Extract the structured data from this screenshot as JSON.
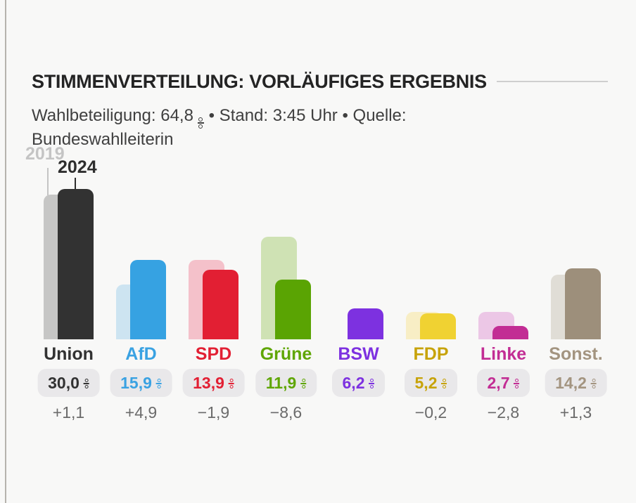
{
  "page": {
    "background_color": "#f8f8f7",
    "left_rule_color": "#b6b3ad",
    "badge_background_color": "#e9e8ea",
    "change_text_color": "#6b6b6b"
  },
  "header": {
    "title": "STIMMENVERTEILUNG: VORLÄUFIGES ERGEBNIS",
    "subtitle_part1": "Wahlbeteiligung: 64,8",
    "subtitle_part2": "• Stand: 3:45 Uhr • Quelle: Bundeswahlleiterin",
    "unit": "%"
  },
  "legend": {
    "series_2019_label": "2019",
    "series_2024_label": "2024",
    "series_2019_color": "#c4c4c4",
    "series_2024_color": "#2e2e2e"
  },
  "chart_data": {
    "type": "bar",
    "title": "STIMMENVERTEILUNG: VORLÄUFIGES ERGEBNIS",
    "unit": "%",
    "grid": false,
    "legend_position": "top-left",
    "ylim": [
      0,
      30
    ],
    "categories": [
      "Union",
      "AfD",
      "SPD",
      "Grüne",
      "BSW",
      "FDP",
      "Linke",
      "Sonst."
    ],
    "series": [
      {
        "name": "2019",
        "values": [
          28.9,
          11.0,
          15.8,
          20.5,
          null,
          5.4,
          5.5,
          12.9
        ]
      },
      {
        "name": "2024",
        "values": [
          30.0,
          15.9,
          13.9,
          11.9,
          6.2,
          5.2,
          2.7,
          14.2
        ]
      }
    ],
    "parties": [
      {
        "name": "Union",
        "value_2024": 30.0,
        "value_2019": 28.9,
        "value_label": "30,0",
        "change_label": "+1,1",
        "color_2024": "#323232",
        "color_2019": "#c6c6c5",
        "label_color": "#323232"
      },
      {
        "name": "AfD",
        "value_2024": 15.9,
        "value_2019": 11.0,
        "value_label": "15,9",
        "change_label": "+4,9",
        "color_2024": "#36a2e2",
        "color_2019": "#cde4f1",
        "label_color": "#3aa2e2"
      },
      {
        "name": "SPD",
        "value_2024": 13.9,
        "value_2019": 15.8,
        "value_label": "13,9",
        "change_label": "−1,9",
        "color_2024": "#e21f33",
        "color_2019": "#f4c1ca",
        "label_color": "#e21f33"
      },
      {
        "name": "Grüne",
        "value_2024": 11.9,
        "value_2019": 20.5,
        "value_label": "11,9",
        "change_label": "−8,6",
        "color_2024": "#5aa403",
        "color_2019": "#cfe2b4",
        "label_color": "#5fa604"
      },
      {
        "name": "BSW",
        "value_2024": 6.2,
        "value_2019": null,
        "value_label": "6,2",
        "change_label": null,
        "color_2024": "#7d31e0",
        "color_2019": null,
        "label_color": "#7d31e0"
      },
      {
        "name": "FDP",
        "value_2024": 5.2,
        "value_2019": 5.4,
        "value_label": "5,2",
        "change_label": "−0,2",
        "color_2024": "#f0d232",
        "color_2019": "#f8eec5",
        "label_color": "#c7a30a"
      },
      {
        "name": "Linke",
        "value_2024": 2.7,
        "value_2019": 5.5,
        "value_label": "2,7",
        "change_label": "−2,8",
        "color_2024": "#c22d94",
        "color_2019": "#ecc7e6",
        "label_color": "#c22d94"
      },
      {
        "name": "Sonst.",
        "value_2024": 14.2,
        "value_2019": 12.9,
        "value_label": "14,2",
        "change_label": "+1,3",
        "color_2024": "#9d8f7b",
        "color_2019": "#e0ddd6",
        "label_color": "#a39480"
      }
    ]
  }
}
